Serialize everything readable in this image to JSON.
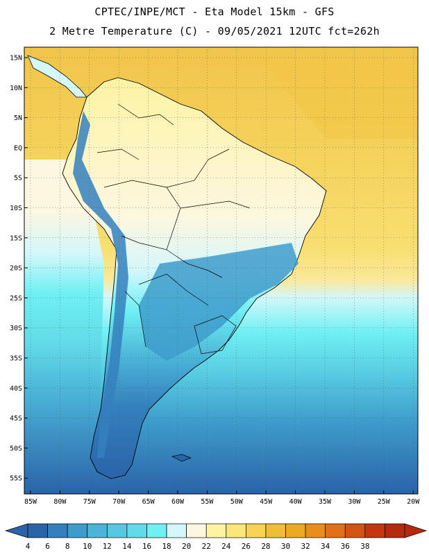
{
  "header": {
    "line1": "CPTEC/INPE/MCT -  Eta Model 15km - GFS",
    "line2": "2 Metre Temperature (C) - 09/05/2021 12UTC fct=262h"
  },
  "map": {
    "lat_labels": [
      "15N",
      "10N",
      "5N",
      "EQ",
      "5S",
      "10S",
      "15S",
      "20S",
      "25S",
      "30S",
      "35S",
      "40S",
      "45S",
      "50S",
      "55S"
    ],
    "lon_labels": [
      "85W",
      "80W",
      "75W",
      "70W",
      "65W",
      "60W",
      "55W",
      "50W",
      "45W",
      "40W",
      "35W",
      "30W",
      "25W",
      "20W"
    ]
  },
  "colorbar": {
    "labels": [
      "4",
      "6",
      "8",
      "10",
      "12",
      "14",
      "16",
      "18",
      "20",
      "22",
      "24",
      "26",
      "28",
      "30",
      "32",
      "34",
      "36",
      "38"
    ],
    "colors": [
      "#2a63a8",
      "#3480bd",
      "#3e9ccb",
      "#4bb4d8",
      "#56c8e0",
      "#62dbe8",
      "#6ff0f3",
      "#d4f7fb",
      "#fdf7e0",
      "#fdf3a3",
      "#fbe679",
      "#f6d255",
      "#efbd37",
      "#ecaa22",
      "#e98e1b",
      "#e07117",
      "#d25413",
      "#c4360f",
      "#b52a0c"
    ]
  }
}
